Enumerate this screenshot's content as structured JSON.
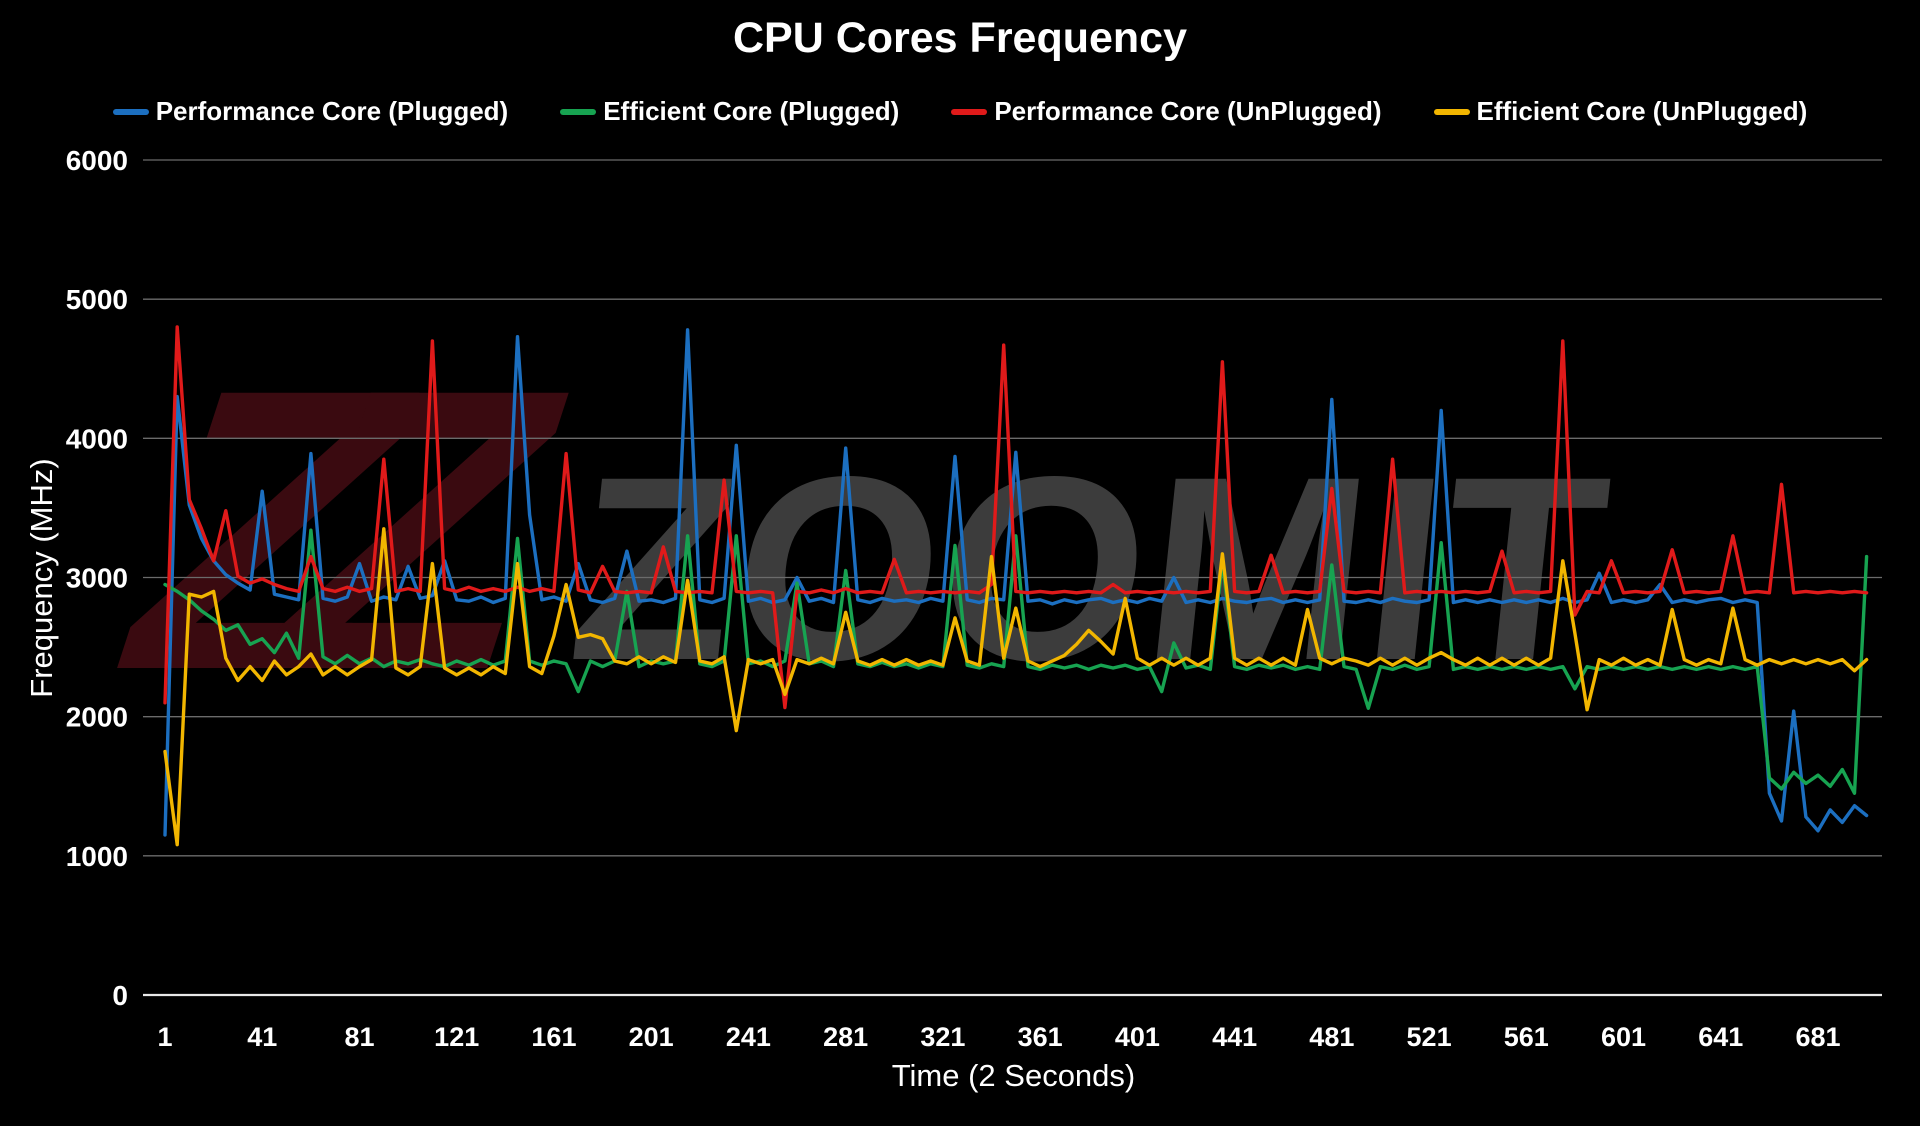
{
  "watermark": {
    "logo_text": "ZZ",
    "brand_text": "ZOOMIT"
  },
  "chart_data": {
    "type": "line",
    "title": "CPU Cores Frequency",
    "xlabel": "Time (2 Seconds)",
    "ylabel": "Frequency (MHz)",
    "ylim": [
      0,
      6000
    ],
    "xlim": [
      1,
      709
    ],
    "yticks": [
      0,
      1000,
      2000,
      3000,
      4000,
      5000,
      6000
    ],
    "xticks": [
      1,
      41,
      81,
      121,
      161,
      201,
      241,
      281,
      321,
      361,
      401,
      441,
      481,
      521,
      561,
      601,
      641,
      681
    ],
    "grid": true,
    "legend_position": "top",
    "background_color": "#000000",
    "gridline_color": "#6b6b6b",
    "axis_line_color": "#e8e8e8",
    "text_color": "#ffffff",
    "x": [
      1,
      6,
      11,
      16,
      21,
      26,
      31,
      36,
      41,
      46,
      51,
      56,
      61,
      66,
      71,
      76,
      81,
      86,
      91,
      96,
      101,
      106,
      111,
      116,
      121,
      126,
      131,
      136,
      141,
      146,
      151,
      156,
      161,
      166,
      171,
      176,
      181,
      186,
      191,
      196,
      201,
      206,
      211,
      216,
      221,
      226,
      231,
      236,
      241,
      246,
      251,
      256,
      261,
      266,
      271,
      276,
      281,
      286,
      291,
      296,
      301,
      306,
      311,
      316,
      321,
      326,
      331,
      336,
      341,
      346,
      351,
      356,
      361,
      366,
      371,
      376,
      381,
      386,
      391,
      396,
      401,
      406,
      411,
      416,
      421,
      426,
      431,
      436,
      441,
      446,
      451,
      456,
      461,
      466,
      471,
      476,
      481,
      486,
      491,
      496,
      501,
      506,
      511,
      516,
      521,
      526,
      531,
      536,
      541,
      546,
      551,
      556,
      561,
      566,
      571,
      576,
      581,
      586,
      591,
      596,
      601,
      606,
      611,
      616,
      621,
      626,
      631,
      636,
      641,
      646,
      651,
      656,
      661,
      666,
      671,
      676,
      681,
      686,
      691,
      696,
      701
    ],
    "series": [
      {
        "name": "Performance Core (Plugged)",
        "color": "#1c6fc0",
        "values": [
          1150,
          4300,
          3520,
          3280,
          3120,
          3020,
          2960,
          2910,
          3620,
          2880,
          2860,
          2840,
          3890,
          2850,
          2830,
          2860,
          3100,
          2830,
          2860,
          2840,
          3080,
          2850,
          2870,
          3120,
          2840,
          2830,
          2860,
          2820,
          2850,
          4730,
          3450,
          2840,
          2860,
          2830,
          3100,
          2840,
          2820,
          2850,
          3190,
          2830,
          2840,
          2820,
          2850,
          4780,
          2840,
          2820,
          2850,
          3950,
          2830,
          2850,
          2820,
          2840,
          3000,
          2830,
          2850,
          2820,
          3930,
          2840,
          2820,
          2850,
          2830,
          2840,
          2820,
          2850,
          2830,
          3870,
          2840,
          2820,
          2850,
          2840,
          3900,
          2830,
          2840,
          2810,
          2840,
          2820,
          2840,
          2850,
          2820,
          2840,
          2820,
          2850,
          2830,
          3000,
          2820,
          2840,
          2820,
          2850,
          2830,
          2820,
          2840,
          2850,
          2820,
          2840,
          2820,
          2840,
          4280,
          2830,
          2820,
          2840,
          2820,
          2850,
          2830,
          2820,
          2840,
          4200,
          2820,
          2840,
          2820,
          2840,
          2820,
          2840,
          2820,
          2840,
          2820,
          2850,
          2820,
          2840,
          3030,
          2820,
          2840,
          2820,
          2840,
          2950,
          2820,
          2840,
          2820,
          2840,
          2850,
          2820,
          2840,
          2820,
          1450,
          1250,
          2040,
          1280,
          1180,
          1330,
          1240,
          1360,
          1290
        ]
      },
      {
        "name": "Efficient Core (Plugged)",
        "color": "#17a351",
        "values": [
          2950,
          2900,
          2840,
          2760,
          2700,
          2620,
          2660,
          2520,
          2560,
          2460,
          2600,
          2420,
          3340,
          2430,
          2380,
          2440,
          2380,
          2420,
          2360,
          2400,
          2380,
          2410,
          2380,
          2360,
          2400,
          2370,
          2410,
          2370,
          2400,
          3280,
          2400,
          2370,
          2400,
          2380,
          2180,
          2400,
          2360,
          2400,
          2900,
          2360,
          2400,
          2380,
          2400,
          3300,
          2380,
          2360,
          2400,
          3300,
          2380,
          2400,
          2360,
          2400,
          2960,
          2380,
          2400,
          2360,
          3050,
          2380,
          2360,
          2390,
          2360,
          2380,
          2350,
          2380,
          2360,
          3230,
          2370,
          2350,
          2380,
          2360,
          3300,
          2360,
          2340,
          2370,
          2350,
          2370,
          2340,
          2370,
          2350,
          2370,
          2340,
          2360,
          2180,
          2530,
          2350,
          2370,
          2340,
          3120,
          2360,
          2340,
          2370,
          2350,
          2370,
          2340,
          2360,
          2340,
          3090,
          2360,
          2340,
          2060,
          2360,
          2340,
          2370,
          2340,
          2360,
          3250,
          2340,
          2360,
          2340,
          2360,
          2340,
          2360,
          2340,
          2360,
          2340,
          2360,
          2200,
          2360,
          2340,
          2360,
          2340,
          2360,
          2340,
          2360,
          2340,
          2360,
          2340,
          2360,
          2340,
          2360,
          2340,
          2360,
          1560,
          1480,
          1600,
          1520,
          1580,
          1500,
          1620,
          1450,
          3150
        ]
      },
      {
        "name": "Performance Core (UnPlugged)",
        "color": "#e01a1a",
        "values": [
          2100,
          4800,
          3560,
          3350,
          3120,
          3480,
          3010,
          2960,
          2990,
          2950,
          2920,
          2900,
          3150,
          2920,
          2900,
          2930,
          2900,
          2920,
          3850,
          2900,
          2920,
          2900,
          4700,
          2920,
          2900,
          2930,
          2900,
          2920,
          2900,
          2930,
          2900,
          2920,
          2900,
          3890,
          2910,
          2890,
          3080,
          2900,
          2890,
          2900,
          2890,
          3220,
          2900,
          2890,
          2900,
          2890,
          3700,
          2900,
          2890,
          2900,
          2890,
          2065,
          2900,
          2890,
          2910,
          2890,
          2920,
          2890,
          2900,
          2890,
          3130,
          2890,
          2900,
          2890,
          2900,
          2890,
          2900,
          2890,
          2950,
          4670,
          2900,
          2890,
          2900,
          2890,
          2900,
          2890,
          2900,
          2890,
          2950,
          2890,
          2900,
          2890,
          2900,
          2890,
          2900,
          2890,
          2900,
          4550,
          2900,
          2890,
          2900,
          3160,
          2890,
          2900,
          2890,
          2900,
          3640,
          2900,
          2890,
          2900,
          2890,
          3850,
          2890,
          2900,
          2890,
          2900,
          2890,
          2900,
          2890,
          2900,
          3190,
          2890,
          2900,
          2890,
          2900,
          4700,
          2730,
          2900,
          2890,
          3120,
          2890,
          2900,
          2890,
          2900,
          3200,
          2890,
          2900,
          2890,
          2900,
          3300,
          2890,
          2900,
          2890,
          3670,
          2890,
          2900,
          2890,
          2900,
          2890,
          2900,
          2890
        ]
      },
      {
        "name": "Efficient Core (UnPlugged)",
        "color": "#f2b600",
        "values": [
          1750,
          1080,
          2880,
          2860,
          2900,
          2420,
          2260,
          2360,
          2260,
          2400,
          2300,
          2360,
          2450,
          2300,
          2360,
          2300,
          2360,
          2410,
          3350,
          2350,
          2300,
          2360,
          3100,
          2350,
          2300,
          2350,
          2300,
          2360,
          2310,
          3100,
          2360,
          2310,
          2580,
          2950,
          2570,
          2590,
          2560,
          2400,
          2380,
          2430,
          2380,
          2430,
          2390,
          2980,
          2400,
          2380,
          2430,
          1900,
          2410,
          2380,
          2410,
          2160,
          2410,
          2380,
          2420,
          2380,
          2750,
          2400,
          2370,
          2410,
          2370,
          2410,
          2370,
          2400,
          2370,
          2710,
          2400,
          2370,
          3150,
          2420,
          2780,
          2400,
          2360,
          2400,
          2440,
          2520,
          2620,
          2540,
          2450,
          2850,
          2420,
          2370,
          2420,
          2370,
          2420,
          2370,
          2420,
          3170,
          2420,
          2370,
          2420,
          2370,
          2420,
          2370,
          2770,
          2420,
          2380,
          2420,
          2400,
          2370,
          2420,
          2370,
          2420,
          2370,
          2420,
          2460,
          2410,
          2370,
          2420,
          2370,
          2420,
          2370,
          2420,
          2370,
          2420,
          3120,
          2600,
          2050,
          2410,
          2370,
          2420,
          2370,
          2410,
          2370,
          2770,
          2410,
          2370,
          2410,
          2380,
          2780,
          2410,
          2370,
          2410,
          2380,
          2410,
          2380,
          2410,
          2380,
          2410,
          2330,
          2410
        ]
      }
    ]
  }
}
